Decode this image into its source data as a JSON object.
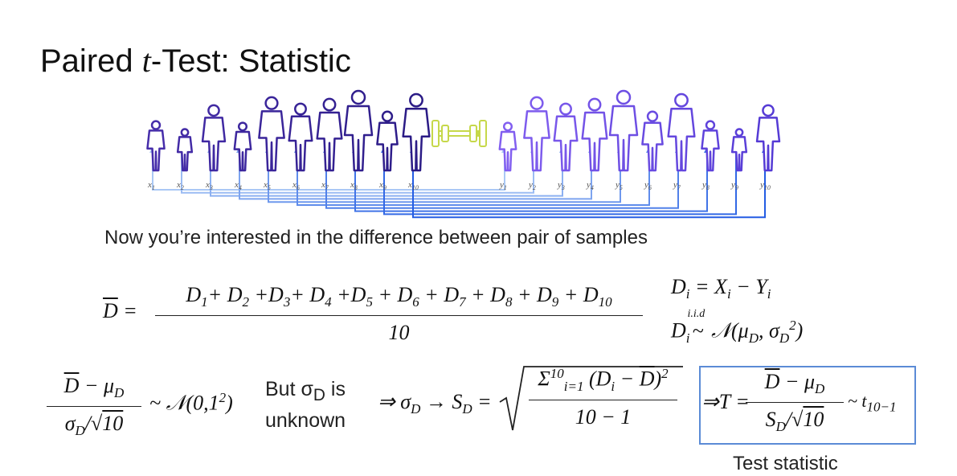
{
  "title": {
    "prefix": "Paired ",
    "italic": "t",
    "suffix": "-Test: Statistic"
  },
  "figure": {
    "x_base": "x",
    "y_base": "y",
    "indices": [
      "1",
      "2",
      "3",
      "4",
      "5",
      "6",
      "7",
      "8",
      "9",
      "10"
    ]
  },
  "caption": "Now you’re interested in the difference between pair of samples",
  "mean": {
    "lhs": [
      {
        "bar": "D"
      },
      {
        "text": " ="
      }
    ],
    "numerator": [
      {
        "text": "D"
      },
      {
        "sub": "1"
      },
      {
        "text": "+ D"
      },
      {
        "sub": "2"
      },
      {
        "text": " +D"
      },
      {
        "sub": "3"
      },
      {
        "text": "+ D"
      },
      {
        "sub": "4"
      },
      {
        "text": " +D"
      },
      {
        "sub": "5"
      },
      {
        "text": " + D"
      },
      {
        "sub": "6"
      },
      {
        "text": " + D"
      },
      {
        "sub": "7"
      },
      {
        "text": " + D"
      },
      {
        "sub": "8"
      },
      {
        "text": " + D"
      },
      {
        "sub": "9"
      },
      {
        "text": " + D"
      },
      {
        "sub": "10"
      }
    ],
    "denominator": [
      {
        "text": "10"
      }
    ]
  },
  "definition": [
    {
      "text": "D"
    },
    {
      "sub": "i"
    },
    {
      "text": " = X"
    },
    {
      "sub": "i"
    },
    {
      "text": " − Y"
    },
    {
      "sub": "i"
    }
  ],
  "distribution": [
    {
      "text": "D"
    },
    {
      "sub": "i"
    },
    {
      "over": "~",
      "above": "i.i.d"
    },
    {
      "text": " 𝒩(μ"
    },
    {
      "sub": "D"
    },
    {
      "text": ", σ"
    },
    {
      "sub": "D"
    },
    {
      "sup": "2"
    },
    {
      "text": ")"
    }
  ],
  "z": {
    "numerator": [
      {
        "bar": "D"
      },
      {
        "text": " − μ"
      },
      {
        "sub": "D"
      }
    ],
    "denominator": [
      {
        "text": "σ"
      },
      {
        "sub": "D"
      },
      {
        "text": "/√"
      },
      {
        "bar": "10"
      }
    ],
    "dist": [
      {
        "text": "~ 𝒩(0,1"
      },
      {
        "sup": "2"
      },
      {
        "text": ")"
      }
    ]
  },
  "but": {
    "line1": [
      {
        "text": "But σ"
      },
      {
        "sub": "D"
      },
      {
        "text": " is"
      }
    ],
    "line2": "unknown"
  },
  "arrow": [
    {
      "text": "⇒ σ"
    },
    {
      "sub": "D"
    },
    {
      "text": " → S"
    },
    {
      "sub": "D"
    },
    {
      "text": " ="
    }
  ],
  "sd": {
    "numerator": [
      {
        "text": "Σ"
      },
      {
        "sup": "10"
      },
      {
        "sub": "i=1"
      },
      {
        "text": " (D"
      },
      {
        "sub": "i"
      },
      {
        "text": " − "
      },
      {
        "bar": "D"
      },
      {
        "text": ")"
      },
      {
        "sup": "2"
      }
    ],
    "denominator": [
      {
        "text": "10 − 1"
      }
    ]
  },
  "t": {
    "lhs": [
      {
        "text": "⇒T ="
      }
    ],
    "numerator": [
      {
        "bar": "D"
      },
      {
        "text": " − μ"
      },
      {
        "sub": "D"
      }
    ],
    "denominator": [
      {
        "text": "S"
      },
      {
        "sub": "D"
      },
      {
        "text": "/√"
      },
      {
        "bar": "10"
      }
    ],
    "dist": [
      {
        "text": "~ t"
      },
      {
        "sub": "10−1"
      }
    ],
    "label": "Test statistic"
  }
}
